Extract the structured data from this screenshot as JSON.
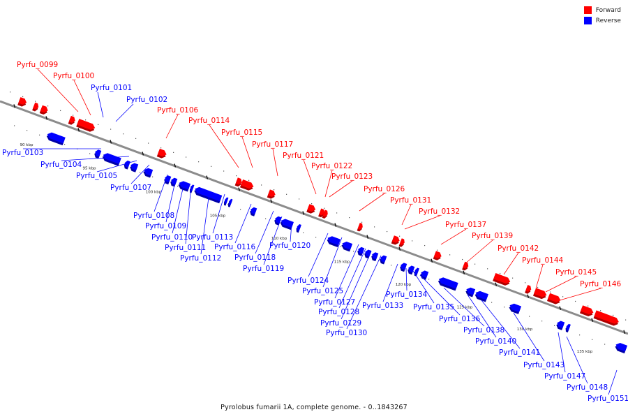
{
  "caption": "Pyrolobus fumarii 1A, complete genome. - 0..1843267",
  "legend": [
    {
      "label": "Forward",
      "color": "#ff0000"
    },
    {
      "label": "Reverse",
      "color": "#0000ff"
    }
  ],
  "colors": {
    "forward": "#ff0000",
    "forward_dark": "#b00000",
    "reverse": "#0000ff",
    "reverse_dark": "#0000a8",
    "axis": "#8c8c8c"
  },
  "ticks": [
    "90 kbp",
    "95 kbp",
    "100 kbp",
    "105 kbp",
    "110 kbp",
    "115 kbp",
    "120 kbp",
    "125 kbp",
    "130 kbp",
    "135 kbp"
  ],
  "forward_genes": [
    "Pyrfu_0099",
    "Pyrfu_0100",
    "Pyrfu_0106",
    "Pyrfu_0114",
    "Pyrfu_0115",
    "Pyrfu_0117",
    "Pyrfu_0121",
    "Pyrfu_0122",
    "Pyrfu_0123",
    "Pyrfu_0126",
    "Pyrfu_0131",
    "Pyrfu_0132",
    "Pyrfu_0137",
    "Pyrfu_0139",
    "Pyrfu_0142",
    "Pyrfu_0144",
    "Pyrfu_0145",
    "Pyrfu_0146"
  ],
  "reverse_genes": [
    "Pyrfu_0101",
    "Pyrfu_0102",
    "Pyrfu_0103",
    "Pyrfu_0104",
    "Pyrfu_0105",
    "Pyrfu_0107",
    "Pyrfu_0108",
    "Pyrfu_0109",
    "Pyrfu_0110",
    "Pyrfu_0111",
    "Pyrfu_0112",
    "Pyrfu_0113",
    "Pyrfu_0116",
    "Pyrfu_0118",
    "Pyrfu_0119",
    "Pyrfu_0120",
    "Pyrfu_0124",
    "Pyrfu_0125",
    "Pyrfu_0127",
    "Pyrfu_0128",
    "Pyrfu_0129",
    "Pyrfu_0130",
    "Pyrfu_0133",
    "Pyrfu_0134",
    "Pyrfu_0135",
    "Pyrfu_0136",
    "Pyrfu_0138",
    "Pyrfu_0140",
    "Pyrfu_0141",
    "Pyrfu_0143",
    "Pyrfu_0147",
    "Pyrfu_0148",
    "Pyrfu_0151"
  ]
}
